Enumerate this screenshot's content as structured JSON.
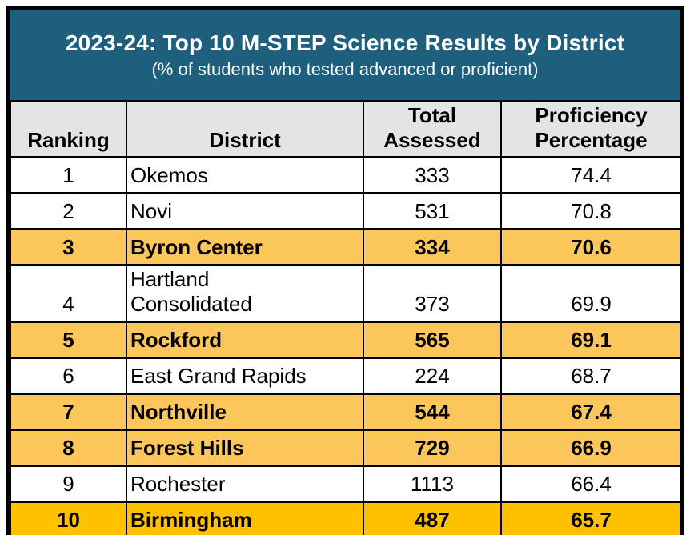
{
  "banner": {
    "title": "2023-24: Top 10 M-STEP Science Results by District",
    "subtitle": "(% of students who tested advanced or proficient)"
  },
  "table": {
    "columns": [
      "Ranking",
      "District",
      "Total Assessed",
      "Proficiency Percentage"
    ],
    "rows": [
      {
        "ranking": "1",
        "district": "Okemos",
        "total_assessed": "333",
        "proficiency_percentage": "74.4",
        "highlight": "none"
      },
      {
        "ranking": "2",
        "district": "Novi",
        "total_assessed": "531",
        "proficiency_percentage": "70.8",
        "highlight": "none"
      },
      {
        "ranking": "3",
        "district": "Byron Center",
        "total_assessed": "334",
        "proficiency_percentage": "70.6",
        "highlight": "amber"
      },
      {
        "ranking": "4",
        "district": "Hartland\nConsolidated",
        "total_assessed": "373",
        "proficiency_percentage": "69.9",
        "highlight": "none"
      },
      {
        "ranking": "5",
        "district": "Rockford",
        "total_assessed": "565",
        "proficiency_percentage": "69.1",
        "highlight": "amber"
      },
      {
        "ranking": "6",
        "district": "East Grand Rapids",
        "total_assessed": "224",
        "proficiency_percentage": "68.7",
        "highlight": "none"
      },
      {
        "ranking": "7",
        "district": "Northville",
        "total_assessed": "544",
        "proficiency_percentage": "67.4",
        "highlight": "amber"
      },
      {
        "ranking": "8",
        "district": "Forest Hills",
        "total_assessed": "729",
        "proficiency_percentage": "66.9",
        "highlight": "amber"
      },
      {
        "ranking": "9",
        "district": "Rochester",
        "total_assessed": "1113",
        "proficiency_percentage": "66.4",
        "highlight": "none"
      },
      {
        "ranking": "10",
        "district": "Birmingham",
        "total_assessed": "487",
        "proficiency_percentage": "65.7",
        "highlight": "gold"
      }
    ]
  },
  "chart_data": {
    "type": "table",
    "title": "2023-24: Top 10 M-STEP Science Results by District",
    "subtitle": "(% of students who tested advanced or proficient)",
    "columns": [
      "Ranking",
      "District",
      "Total Assessed",
      "Proficiency Percentage"
    ],
    "rows": [
      [
        1,
        "Okemos",
        333,
        74.4
      ],
      [
        2,
        "Novi",
        531,
        70.8
      ],
      [
        3,
        "Byron Center",
        334,
        70.6
      ],
      [
        4,
        "Hartland Consolidated",
        373,
        69.9
      ],
      [
        5,
        "Rockford",
        565,
        69.1
      ],
      [
        6,
        "East Grand Rapids",
        224,
        68.7
      ],
      [
        7,
        "Northville",
        544,
        67.4
      ],
      [
        8,
        "Forest Hills",
        729,
        66.9
      ],
      [
        9,
        "Rochester",
        1113,
        66.4
      ],
      [
        10,
        "Birmingham",
        487,
        65.7
      ]
    ],
    "highlighted_rankings_amber": [
      3,
      5,
      7,
      8
    ],
    "highlighted_rankings_gold": [
      10
    ]
  },
  "colors": {
    "banner_teal": "#1E5F7E",
    "header_gray": "#E4E4E4",
    "highlight_amber": "#FBC75B",
    "highlight_gold": "#FFC000",
    "border_black": "#000000",
    "text_white": "#FFFFFF",
    "text_black": "#000000"
  }
}
